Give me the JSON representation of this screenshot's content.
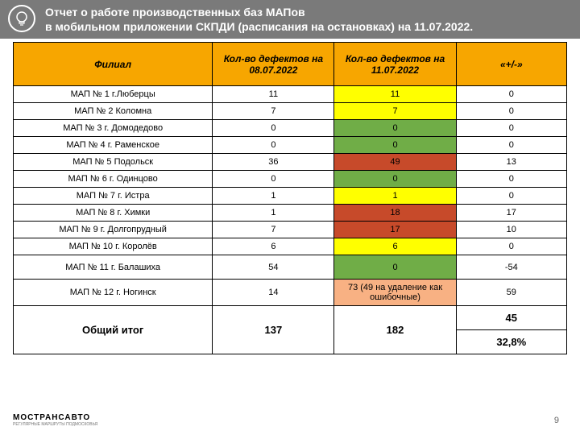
{
  "header": {
    "title_line1": "Отчет о работе производственных баз МАПов",
    "title_line2": "в мобильном приложении СКПДИ (расписания на остановках) на 11.07.2022."
  },
  "colors": {
    "header_bg": "#f7a600",
    "body_bg": "#ffffff",
    "yellow": "#ffff00",
    "green": "#70ad47",
    "red": "#c74a2a",
    "orange_light": "#f8b183",
    "bar_bg": "#7a7a7a"
  },
  "table": {
    "columns": [
      "Филиал",
      "Кол-во дефектов на 08.07.2022",
      "Кол-во дефектов на 11.07.2022",
      "«+/-»"
    ],
    "col_widths_pct": [
      36,
      22,
      22,
      20
    ],
    "rows": [
      {
        "branch": "МАП № 1 г.Люберцы",
        "prev": "11",
        "curr": "11",
        "delta": "0",
        "color": "yellow"
      },
      {
        "branch": "МАП № 2 Коломна",
        "prev": "7",
        "curr": "7",
        "delta": "0",
        "color": "yellow"
      },
      {
        "branch": "МАП № 3 г. Домодедово",
        "prev": "0",
        "curr": "0",
        "delta": "0",
        "color": "green"
      },
      {
        "branch": "МАП № 4 г. Раменское",
        "prev": "0",
        "curr": "0",
        "delta": "0",
        "color": "green"
      },
      {
        "branch": "МАП № 5 Подольск",
        "prev": "36",
        "curr": "49",
        "delta": "13",
        "color": "red"
      },
      {
        "branch": "МАП № 6 г. Одинцово",
        "prev": "0",
        "curr": "0",
        "delta": "0",
        "color": "green"
      },
      {
        "branch": "МАП № 7 г. Истра",
        "prev": "1",
        "curr": "1",
        "delta": "0",
        "color": "yellow"
      },
      {
        "branch": "МАП № 8 г. Химки",
        "prev": "1",
        "curr": "18",
        "delta": "17",
        "color": "red"
      },
      {
        "branch": "МАП № 9 г. Долгопрудный",
        "prev": "7",
        "curr": "17",
        "delta": "10",
        "color": "red"
      },
      {
        "branch": "МАП № 10 г. Королёв",
        "prev": "6",
        "curr": "6",
        "delta": "0",
        "color": "yellow"
      },
      {
        "branch": "МАП № 11 г. Балашиха",
        "prev": "54",
        "curr": "0",
        "delta": "-54",
        "color": "green",
        "tall": true
      },
      {
        "branch": "МАП № 12 г. Ногинск",
        "prev": "14",
        "curr": "73 (49 на удаление как ошибочные)",
        "delta": "59",
        "color": "orange_light",
        "tall": true
      }
    ],
    "total": {
      "label": "Общий итог",
      "prev": "137",
      "curr": "182",
      "delta_abs": "45",
      "delta_pct": "32,8%"
    }
  },
  "footer": {
    "logo": "МОСТРАНСАВТО",
    "logo_sub": "РЕГУЛЯРНЫЕ МАРШРУТЫ ПОДМОСКОВЬЯ",
    "page": "9"
  }
}
